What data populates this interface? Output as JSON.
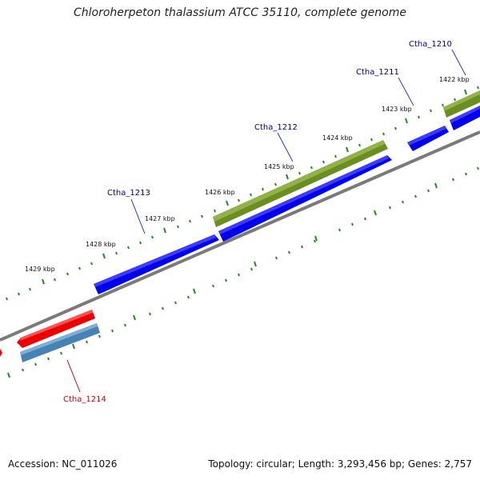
{
  "title": "Chloroherpeton thalassium ATCC 35110, complete genome",
  "footer": {
    "accession": "Accession: NC_011026",
    "summary": "Topology: circular; Length: 3,293,456 bp; Genes: 2,757"
  },
  "kbp_labels": [
    "1422 kbp",
    "1423 kbp",
    "1424 kbp",
    "1425 kbp",
    "1426 kbp",
    "1427 kbp",
    "1428 kbp",
    "1429 kbp"
  ],
  "genes": [
    {
      "name": "Ctha_1210",
      "color": "#00008b"
    },
    {
      "name": "Ctha_1211",
      "color": "#00008b"
    },
    {
      "name": "Ctha_1212",
      "color": "#00008b"
    },
    {
      "name": "Ctha_1213",
      "color": "#00008b"
    },
    {
      "name": "Ctha_1214",
      "color": "#cc0000"
    }
  ],
  "colors": {
    "cds_forward": "#0000ee",
    "cds_green": "#6b8e23",
    "cds_red": "#ee0000",
    "cds_steel": "#4682b4",
    "backbone": "#808080",
    "tick": "#228b22"
  }
}
